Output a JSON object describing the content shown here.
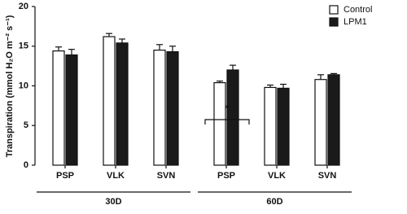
{
  "chart_data": {
    "type": "bar",
    "y_label": "Transpiration (mmol H₂O m⁻² s⁻¹)",
    "categories": [
      "PSP",
      "VLK",
      "SVN",
      "PSP",
      "VLK",
      "SVN"
    ],
    "groups": [
      "30D",
      "60D"
    ],
    "series": [
      {
        "name": "Control",
        "color": "#ffffff",
        "values": [
          14.4,
          16.2,
          14.5,
          10.4,
          9.8,
          10.8
        ],
        "errors": [
          0.5,
          0.4,
          0.7,
          0.2,
          0.3,
          0.6
        ]
      },
      {
        "name": "LPM1",
        "color": "#1a1a1a",
        "values": [
          13.9,
          15.4,
          14.3,
          12.0,
          9.7,
          11.4
        ],
        "errors": [
          0.7,
          0.5,
          0.7,
          0.6,
          0.5,
          0.15
        ]
      }
    ],
    "annotation": "*",
    "ylim": [
      0,
      20
    ],
    "yticks": [
      0,
      5,
      10,
      15,
      20
    ],
    "grid": false,
    "legend": "top-right"
  }
}
